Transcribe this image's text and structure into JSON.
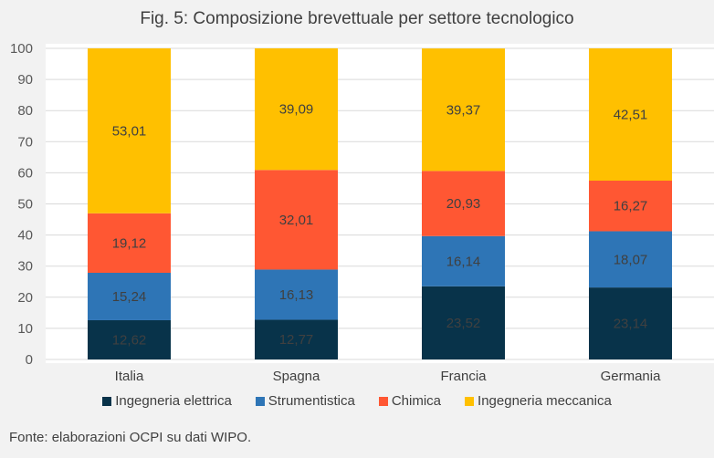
{
  "chart_data": {
    "type": "bar",
    "stacked": true,
    "title": "Fig. 5: Composizione brevettuale per settore tecnologico",
    "xlabel": "",
    "ylabel": "",
    "ylim": [
      0,
      100
    ],
    "yticks": [
      0,
      10,
      20,
      30,
      40,
      50,
      60,
      70,
      80,
      90,
      100
    ],
    "grid": true,
    "legend_position": "bottom",
    "categories": [
      "Italia",
      "Spagna",
      "Francia",
      "Germania"
    ],
    "series": [
      {
        "name": "Ingegneria elettrica",
        "color": "#08334a",
        "values": [
          12.62,
          12.77,
          23.52,
          23.14
        ],
        "labels": [
          "12,62",
          "12,77",
          "23,52",
          "23,14"
        ]
      },
      {
        "name": "Strumentistica",
        "color": "#2e75b6",
        "values": [
          15.24,
          16.13,
          16.14,
          18.07
        ],
        "labels": [
          "15,24",
          "16,13",
          "16,14",
          "18,07"
        ]
      },
      {
        "name": "Chimica",
        "color": "#ff5733",
        "values": [
          19.12,
          32.01,
          20.93,
          16.27
        ],
        "labels": [
          "19,12",
          "32,01",
          "20,93",
          "16,27"
        ]
      },
      {
        "name": "Ingegneria meccanica",
        "color": "#ffc000",
        "values": [
          53.01,
          39.09,
          39.37,
          42.51
        ],
        "labels": [
          "53,01",
          "39,09",
          "39,37",
          "42,51"
        ]
      }
    ],
    "source": "Fonte: elaborazioni OCPI su dati WIPO."
  }
}
